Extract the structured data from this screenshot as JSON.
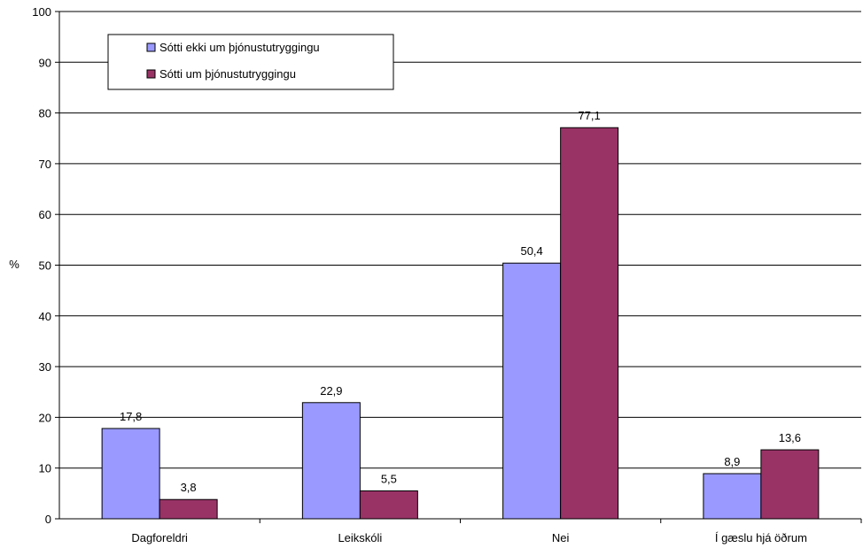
{
  "chart_data": {
    "type": "bar",
    "title": "",
    "xlabel": "",
    "ylabel": "%",
    "ylim": [
      0,
      100
    ],
    "yticks": [
      0,
      10,
      20,
      30,
      40,
      50,
      60,
      70,
      80,
      90,
      100
    ],
    "grid": true,
    "legend_position": "top-left",
    "categories": [
      "Dagforeldri",
      "Leikskóli",
      "Nei",
      "Í gæslu hjá öðrum"
    ],
    "series": [
      {
        "name": "Sótti ekki um þjónustutryggingu",
        "color": "#9999ff",
        "values": [
          17.8,
          22.9,
          50.4,
          8.9
        ],
        "labels": [
          "17,8",
          "22,9",
          "50,4",
          "8,9"
        ]
      },
      {
        "name": "Sótti um þjónustutryggingu",
        "color": "#993366",
        "values": [
          3.8,
          5.5,
          77.1,
          13.6
        ],
        "labels": [
          "3,8",
          "5,5",
          "77,1",
          "13,6"
        ]
      }
    ]
  }
}
